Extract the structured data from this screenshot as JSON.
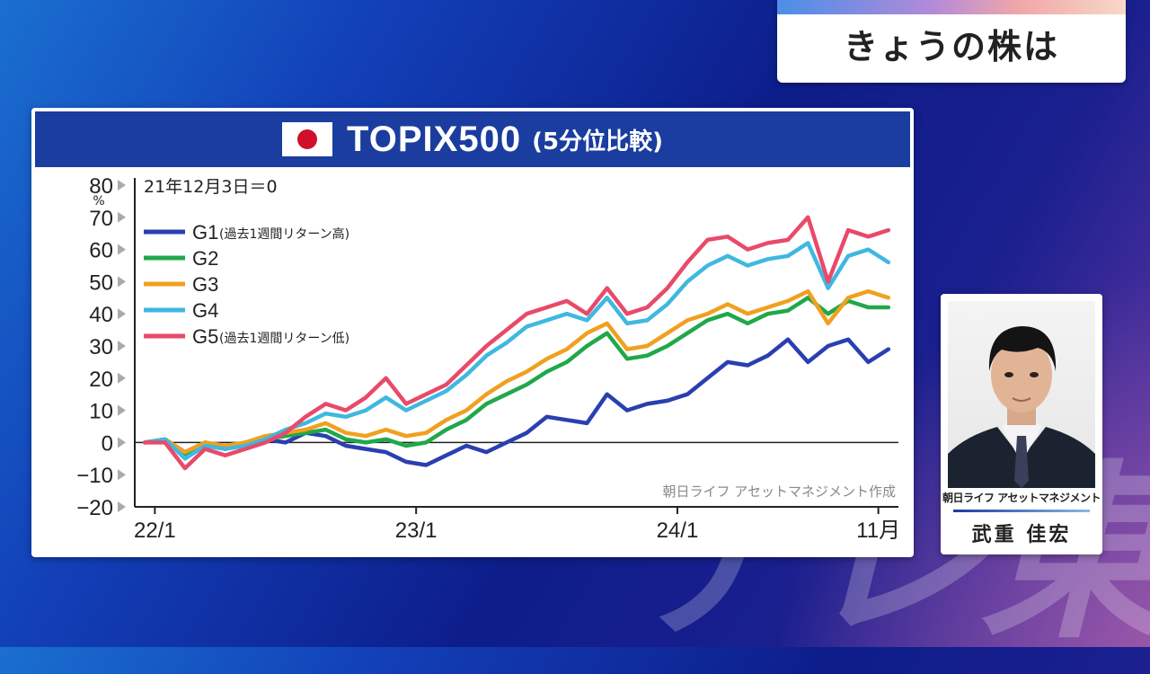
{
  "header_box": {
    "title": "きょうの株は"
  },
  "chart_panel": {
    "title": "TOPIX500",
    "subtitle": "(5分位比較)",
    "flag_icon": "japan-flag-icon"
  },
  "person": {
    "company": "朝日ライフ アセットマネジメント",
    "name": "武重 佳宏",
    "photo_icon": "person-photo"
  },
  "watermark": "テレ東",
  "chart_data": {
    "type": "line",
    "base_note": "21年12月3日＝0",
    "source": "朝日ライフ アセットマネジメント作成",
    "y_unit": "%",
    "ylim": [
      -20,
      80
    ],
    "yticks": [
      -20,
      -10,
      0,
      10,
      20,
      30,
      40,
      50,
      60,
      70,
      80
    ],
    "ytick_labels": [
      "−20",
      "−10",
      "0",
      "10",
      "20",
      "30",
      "40",
      "50",
      "60",
      "70",
      "80"
    ],
    "x_ticks": [
      {
        "x": 0.5,
        "label": "22/1"
      },
      {
        "x": 13.5,
        "label": "23/1"
      },
      {
        "x": 26.5,
        "label": "24/1"
      },
      {
        "x": 36.5,
        "label": "11月"
      }
    ],
    "xlim": [
      -0.5,
      37.5
    ],
    "grid": false,
    "legend_position": "top-left",
    "series": [
      {
        "name": "G1",
        "legend_note": "(過去1週間リターン高)",
        "color": "#2a3fb0",
        "values": [
          0,
          1,
          -3,
          0,
          -2,
          0,
          1,
          0,
          3,
          2,
          -1,
          -2,
          -3,
          -6,
          -7,
          -4,
          -1,
          -3,
          0,
          3,
          8,
          7,
          6,
          15,
          10,
          12,
          13,
          15,
          20,
          25,
          24,
          27,
          32,
          25,
          30,
          32,
          25,
          29
        ]
      },
      {
        "name": "G2",
        "legend_note": "",
        "color": "#20a84a",
        "values": [
          0,
          1,
          -4,
          0,
          -2,
          0,
          1,
          2,
          3,
          4,
          1,
          0,
          1,
          -1,
          0,
          4,
          7,
          12,
          15,
          18,
          22,
          25,
          30,
          34,
          26,
          27,
          30,
          34,
          38,
          40,
          37,
          40,
          41,
          45,
          40,
          44,
          42,
          42
        ]
      },
      {
        "name": "G3",
        "legend_note": "",
        "color": "#f0a020",
        "values": [
          0,
          1,
          -3,
          0,
          -1,
          0,
          2,
          3,
          4,
          6,
          3,
          2,
          4,
          2,
          3,
          7,
          10,
          15,
          19,
          22,
          26,
          29,
          34,
          37,
          29,
          30,
          34,
          38,
          40,
          43,
          40,
          42,
          44,
          47,
          37,
          45,
          47,
          45
        ]
      },
      {
        "name": "G4",
        "legend_note": "",
        "color": "#40b8e0",
        "values": [
          0,
          1,
          -5,
          -1,
          -2,
          -1,
          1,
          4,
          6,
          9,
          8,
          10,
          14,
          10,
          13,
          16,
          21,
          27,
          31,
          36,
          38,
          40,
          38,
          45,
          37,
          38,
          43,
          50,
          55,
          58,
          55,
          57,
          58,
          62,
          48,
          58,
          60,
          56
        ]
      },
      {
        "name": "G5",
        "legend_note": "(過去1週間リターン低)",
        "color": "#e84a6a",
        "values": [
          0,
          0,
          -8,
          -2,
          -4,
          -2,
          0,
          3,
          8,
          12,
          10,
          14,
          20,
          12,
          15,
          18,
          24,
          30,
          35,
          40,
          42,
          44,
          40,
          48,
          40,
          42,
          48,
          56,
          63,
          64,
          60,
          62,
          63,
          70,
          50,
          66,
          64,
          66
        ]
      }
    ]
  }
}
